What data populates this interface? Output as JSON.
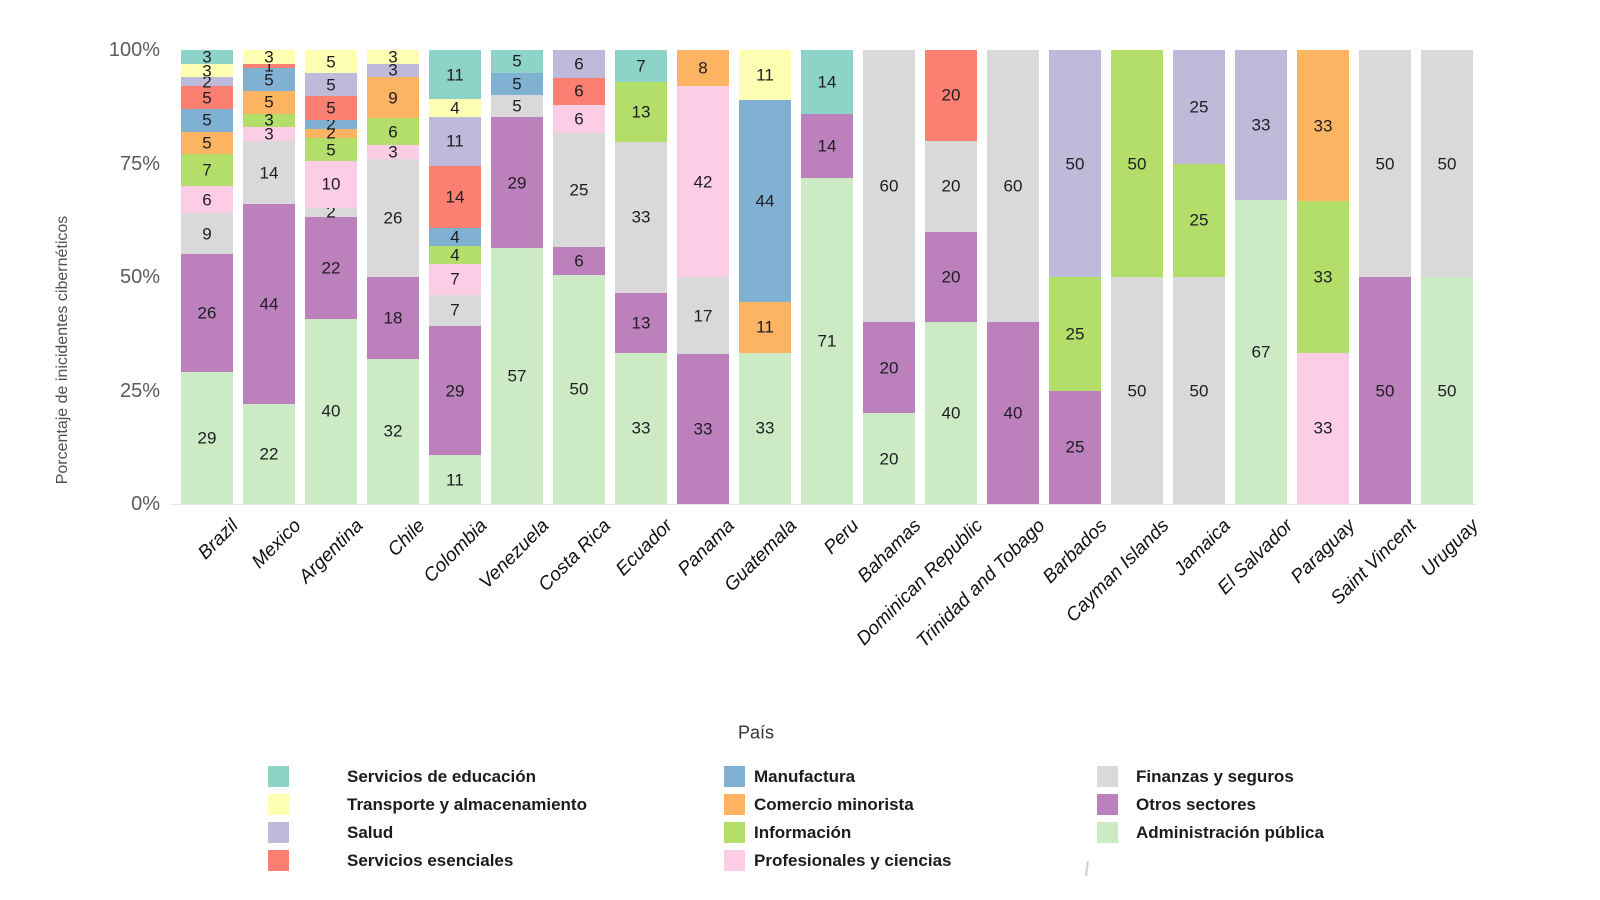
{
  "chart_data": {
    "type": "bar",
    "variant": "stacked-percent",
    "title": "",
    "xlabel": "País",
    "ylabel": "Porcentaje de inicidentes cibernéticos",
    "yticks": [
      "0%",
      "25%",
      "50%",
      "75%",
      "100%"
    ],
    "grid": false,
    "legend_position": "bottom",
    "categories": [
      "Brazil",
      "Mexico",
      "Argentina",
      "Chile",
      "Colombia",
      "Venezuela",
      "Costa Rica",
      "Ecuador",
      "Panama",
      "Guatemala",
      "Peru",
      "Bahamas",
      "Dominican Republic",
      "Trinidad and Tobago",
      "Barbados",
      "Cayman Islands",
      "Jamaica",
      "El Salvador",
      "Paraguay",
      "Saint Vincent",
      "Uruguay"
    ],
    "stack_order": "series listed bottom-to-top",
    "series": [
      {
        "name": "Administración pública",
        "color": "#CCEBC5",
        "values": [
          29,
          22,
          40,
          32,
          11,
          57,
          50,
          33,
          0,
          33,
          71,
          20,
          40,
          0,
          0,
          0,
          0,
          67,
          0,
          0,
          50
        ]
      },
      {
        "name": "Otros sectores",
        "color": "#BC80BD",
        "values": [
          26,
          44,
          22,
          18,
          29,
          29,
          6,
          13,
          33,
          0,
          14,
          20,
          20,
          40,
          25,
          0,
          0,
          0,
          0,
          50,
          0
        ]
      },
      {
        "name": "Finanzas y seguros",
        "color": "#D9D9D9",
        "values": [
          9,
          14,
          2,
          26,
          7,
          5,
          25,
          33,
          17,
          0,
          0,
          60,
          20,
          60,
          0,
          50,
          50,
          0,
          0,
          50,
          50
        ]
      },
      {
        "name": "Profesionales y ciencias",
        "color": "#FCCDE5",
        "values": [
          6,
          3,
          10,
          3,
          7,
          0,
          6,
          0,
          42,
          0,
          0,
          0,
          0,
          0,
          0,
          0,
          0,
          0,
          33,
          0,
          0
        ]
      },
      {
        "name": "Información",
        "color": "#B3DE69",
        "values": [
          7,
          3,
          5,
          6,
          4,
          0,
          0,
          13,
          0,
          0,
          0,
          0,
          0,
          0,
          25,
          50,
          25,
          0,
          33,
          0,
          0
        ]
      },
      {
        "name": "Comercio minorista",
        "color": "#FDB462",
        "values": [
          5,
          5,
          2,
          9,
          0,
          0,
          0,
          0,
          8,
          11,
          0,
          0,
          0,
          0,
          0,
          0,
          0,
          0,
          33,
          0,
          0
        ]
      },
      {
        "name": "Manufactura",
        "color": "#80B1D3",
        "values": [
          5,
          5,
          2,
          0,
          4,
          5,
          0,
          0,
          0,
          44,
          0,
          0,
          0,
          0,
          0,
          0,
          0,
          0,
          0,
          0,
          0
        ]
      },
      {
        "name": "Servicios esenciales",
        "color": "#FB8072",
        "values": [
          5,
          1,
          5,
          0,
          14,
          0,
          6,
          0,
          0,
          0,
          0,
          0,
          20,
          0,
          0,
          0,
          0,
          0,
          0,
          0,
          0
        ]
      },
      {
        "name": "Salud",
        "color": "#BEBADA",
        "values": [
          2,
          0,
          5,
          3,
          11,
          0,
          6,
          0,
          0,
          0,
          0,
          0,
          0,
          0,
          50,
          0,
          25,
          33,
          0,
          0,
          0
        ]
      },
      {
        "name": "Transporte y almacenamiento",
        "color": "#FFFFB3",
        "values": [
          3,
          3,
          5,
          3,
          4,
          0,
          0,
          0,
          0,
          11,
          0,
          0,
          0,
          0,
          0,
          0,
          0,
          0,
          0,
          0,
          0
        ]
      },
      {
        "name": "Servicios de educación",
        "color": "#8DD3C7",
        "values": [
          3,
          0,
          0,
          0,
          11,
          5,
          0,
          7,
          0,
          0,
          14,
          0,
          0,
          0,
          0,
          0,
          0,
          0,
          0,
          0,
          0
        ]
      }
    ],
    "legend_columns": [
      [
        "Servicios de educación",
        "Transporte y almacenamiento",
        "Salud",
        "Servicios esenciales"
      ],
      [
        "Manufactura",
        "Comercio minorista",
        "Información",
        "Profesionales y ciencias"
      ],
      [
        "Finanzas y seguros",
        "Otros sectores",
        "Administración pública"
      ]
    ]
  }
}
